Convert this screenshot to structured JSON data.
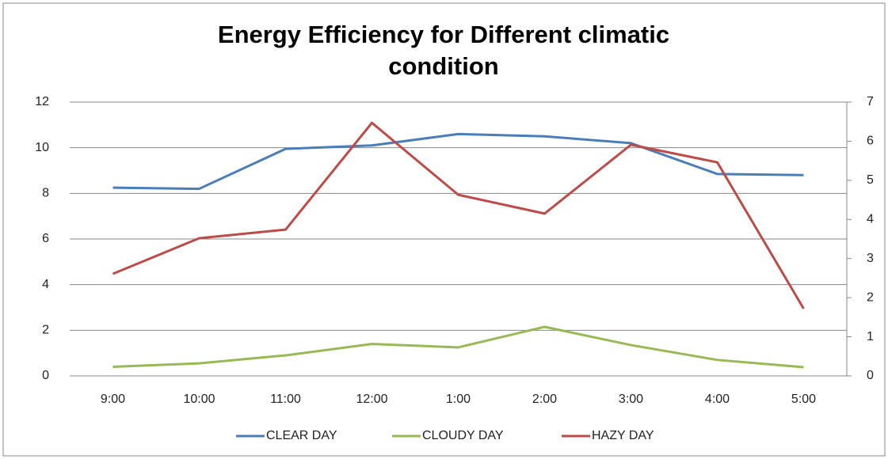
{
  "chart_data": {
    "type": "line",
    "title": "Energy Efficiency for Different climatic condition",
    "categories": [
      "9:00",
      "10:00",
      "11:00",
      "12:00",
      "1:00",
      "2:00",
      "3:00",
      "4:00",
      "5:00"
    ],
    "series": [
      {
        "name": "CLEAR DAY",
        "color": "#4a7ebb",
        "values": [
          8.25,
          8.2,
          9.95,
          10.1,
          10.6,
          10.5,
          10.2,
          8.85,
          8.8
        ]
      },
      {
        "name": "CLOUDY DAY",
        "color": "#98b954",
        "values": [
          0.4,
          0.55,
          0.9,
          1.4,
          1.25,
          2.15,
          1.35,
          0.7,
          0.38
        ]
      },
      {
        "name": "HAZY DAY",
        "color": "#be4b48",
        "axis": "y2",
        "values": [
          2.61,
          3.52,
          3.74,
          6.47,
          4.63,
          4.15,
          5.91,
          5.46,
          1.72
        ]
      }
    ],
    "ylim": [
      0,
      12
    ],
    "yticks": [
      0,
      2,
      4,
      6,
      8,
      10,
      12
    ],
    "y2lim": [
      0,
      7
    ],
    "y2ticks": [
      0,
      1,
      2,
      3,
      4,
      5,
      6,
      7
    ],
    "grid": true,
    "legend": "bottom"
  }
}
